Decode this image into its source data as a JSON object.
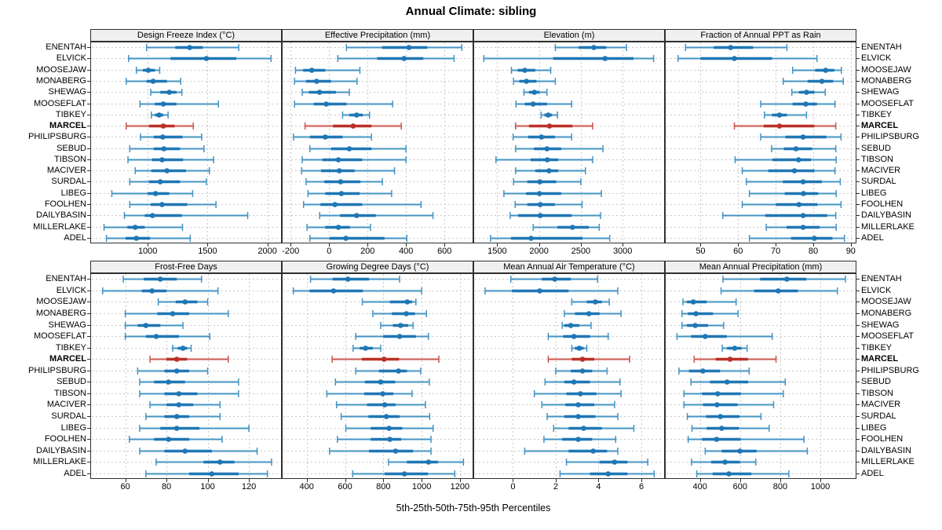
{
  "title": "Annual Climate: sibling",
  "caption": "5th-25th-50th-75th-95th Percentiles",
  "highlight_station": "MARCEL",
  "colors": {
    "series_main": "#1f77b4",
    "series_whisker": "#4393c3",
    "highlight_main": "#bb3026",
    "highlight_whisker": "#c9554c",
    "gridline": "#c9c9c9",
    "panel_border": "#2f2f2f",
    "header_bg": "#f0f0f0"
  },
  "stations": [
    "ENENTAH",
    "ELVICK",
    "MOOSEJAW",
    "MONABERG",
    "SHEWAG",
    "MOOSEFLAT",
    "TIBKEY",
    "MARCEL",
    "PHILIPSBURG",
    "SEBUD",
    "TIBSON",
    "MACIVER",
    "SURDAL",
    "LIBEG",
    "FOOLHEN",
    "DAILYBASIN",
    "MILLERLAKE",
    "ADEL"
  ],
  "percentile_labels": [
    "5th",
    "25th",
    "50th",
    "75th",
    "95th"
  ],
  "chart_data": [
    {
      "type": "scatter",
      "title": "Design Freeze Index (°C)",
      "grid_row": 0,
      "grid_col": 0,
      "xlim": [
        520,
        2120
      ],
      "x_ticks": [
        1000,
        1500,
        2000
      ],
      "values": [
        [
          990,
          1230,
          1350,
          1460,
          1760
        ],
        [
          840,
          1190,
          1490,
          1740,
          2030
        ],
        [
          905,
          960,
          1005,
          1060,
          1100
        ],
        [
          820,
          990,
          1045,
          1160,
          1275
        ],
        [
          1025,
          1105,
          1180,
          1240,
          1285
        ],
        [
          935,
          1060,
          1130,
          1240,
          1590
        ],
        [
          1030,
          1060,
          1095,
          1130,
          1170
        ],
        [
          820,
          1010,
          1130,
          1225,
          1380
        ],
        [
          940,
          1050,
          1125,
          1290,
          1450
        ],
        [
          850,
          1050,
          1135,
          1270,
          1470
        ],
        [
          835,
          1035,
          1120,
          1295,
          1550
        ],
        [
          895,
          1030,
          1160,
          1320,
          1515
        ],
        [
          850,
          1010,
          1105,
          1270,
          1490
        ],
        [
          700,
          1000,
          1065,
          1180,
          1375
        ],
        [
          850,
          1025,
          1120,
          1330,
          1570
        ],
        [
          805,
          975,
          1040,
          1285,
          1835
        ],
        [
          635,
          830,
          895,
          975,
          1290
        ],
        [
          655,
          815,
          905,
          1020,
          1355
        ]
      ]
    },
    {
      "type": "scatter",
      "title": "Effective Precipitation (mm)",
      "grid_row": 0,
      "grid_col": 1,
      "xlim": [
        -246,
        750
      ],
      "x_ticks": [
        -200,
        0,
        200,
        400,
        600
      ],
      "values": [
        [
          90,
          275,
          415,
          510,
          690
        ],
        [
          45,
          250,
          390,
          490,
          650
        ],
        [
          -175,
          -135,
          -90,
          -20,
          160
        ],
        [
          -180,
          -120,
          -65,
          10,
          145
        ],
        [
          -140,
          -105,
          -50,
          35,
          105
        ],
        [
          -180,
          -80,
          -15,
          90,
          330
        ],
        [
          70,
          105,
          143,
          175,
          210
        ],
        [
          -125,
          20,
          125,
          220,
          375
        ],
        [
          -185,
          -100,
          -20,
          70,
          220
        ],
        [
          -100,
          10,
          105,
          220,
          400
        ],
        [
          -140,
          -35,
          48,
          172,
          400
        ],
        [
          -143,
          -42,
          53,
          132,
          340
        ],
        [
          -120,
          -25,
          60,
          163,
          277
        ],
        [
          -110,
          -20,
          64,
          159,
          325
        ],
        [
          -133,
          -45,
          30,
          172,
          478
        ],
        [
          -49,
          57,
          143,
          243,
          540
        ],
        [
          -115,
          -20,
          48,
          108,
          215
        ],
        [
          -100,
          3,
          87,
          288,
          404
        ]
      ]
    },
    {
      "type": "scatter",
      "title": "Elevation (m)",
      "grid_row": 0,
      "grid_col": 2,
      "xlim": [
        1215,
        3505
      ],
      "x_ticks": [
        1500,
        2000,
        2500,
        3000
      ],
      "values": [
        [
          2195,
          2475,
          2655,
          2805,
          3045
        ],
        [
          1340,
          2170,
          2790,
          3130,
          3370
        ],
        [
          1670,
          1745,
          1830,
          1955,
          2140
        ],
        [
          1695,
          1765,
          1850,
          1970,
          2195
        ],
        [
          1820,
          1880,
          1945,
          2005,
          2095
        ],
        [
          1725,
          1830,
          1930,
          2095,
          2390
        ],
        [
          2025,
          2065,
          2110,
          2155,
          2220
        ],
        [
          1720,
          1880,
          2125,
          2400,
          2640
        ],
        [
          1690,
          1870,
          2030,
          2190,
          2390
        ],
        [
          1720,
          1940,
          2095,
          2265,
          2765
        ],
        [
          1485,
          1900,
          2100,
          2230,
          2640
        ],
        [
          1720,
          1955,
          2120,
          2230,
          2555
        ],
        [
          1695,
          1860,
          2010,
          2205,
          2500
        ],
        [
          1580,
          1845,
          2005,
          2265,
          2745
        ],
        [
          1715,
          1860,
          2015,
          2190,
          2515
        ],
        [
          1655,
          1750,
          2015,
          2390,
          2735
        ],
        [
          1930,
          2220,
          2400,
          2595,
          2720
        ],
        [
          1420,
          1665,
          1905,
          2520,
          2845
        ]
      ]
    },
    {
      "type": "scatter",
      "title": "Fraction of Annual PPT as Rain",
      "grid_row": 0,
      "grid_col": 3,
      "xlim": [
        40.5,
        91.5
      ],
      "x_ticks": [
        50,
        60,
        70,
        80,
        90
      ],
      "values": [
        [
          46,
          53.5,
          58,
          64,
          73
        ],
        [
          44,
          50,
          59,
          69,
          81
        ],
        [
          74.5,
          80.5,
          83.3,
          85.6,
          87.5
        ],
        [
          72,
          78.5,
          82.3,
          85.3,
          88
        ],
        [
          74.3,
          76.2,
          78.2,
          80.3,
          83.2
        ],
        [
          66,
          74.5,
          78,
          81,
          85.8
        ],
        [
          67,
          69,
          71,
          73,
          78.2
        ],
        [
          59,
          66.8,
          71,
          80.3,
          86
        ],
        [
          66,
          72.6,
          77.3,
          83.5,
          87.4
        ],
        [
          68.9,
          72.2,
          75.4,
          79.7,
          86
        ],
        [
          59.2,
          69.1,
          76.1,
          79.4,
          86.1
        ],
        [
          61.1,
          68,
          75,
          80.3,
          85.8
        ],
        [
          62.2,
          71.9,
          77.3,
          82.3,
          87.2
        ],
        [
          63,
          72.4,
          77.4,
          81.3,
          86.1
        ],
        [
          61.1,
          70,
          76.2,
          81.1,
          87.4
        ],
        [
          55.9,
          67.2,
          77.3,
          83.7,
          86
        ],
        [
          67.5,
          72.9,
          77.3,
          81.7,
          86.1
        ],
        [
          63,
          74.1,
          80.3,
          85.1,
          88.3
        ]
      ]
    },
    {
      "type": "scatter",
      "title": "Frost-Free Days",
      "grid_row": 1,
      "grid_col": 0,
      "xlim": [
        43,
        136
      ],
      "x_ticks": [
        60,
        80,
        100,
        120
      ],
      "values": [
        [
          59,
          69,
          77,
          85,
          97
        ],
        [
          49,
          68,
          73,
          80,
          105
        ],
        [
          76,
          84.5,
          89,
          95,
          100
        ],
        [
          60,
          75.5,
          83,
          91,
          110
        ],
        [
          60,
          66,
          70,
          77,
          88
        ],
        [
          60,
          70,
          75,
          86,
          101
        ],
        [
          83,
          85.5,
          88,
          90,
          92
        ],
        [
          72,
          80,
          85,
          90,
          110
        ],
        [
          66,
          79,
          85,
          91,
          100
        ],
        [
          67,
          74,
          81,
          89,
          115
        ],
        [
          67,
          79,
          86,
          95,
          115
        ],
        [
          72,
          80,
          86,
          93,
          106
        ],
        [
          70,
          79,
          85,
          91,
          106
        ],
        [
          67,
          77,
          85,
          96,
          120
        ],
        [
          62,
          74,
          81,
          91,
          107
        ],
        [
          67,
          79,
          89,
          102,
          124
        ],
        [
          75,
          98,
          106,
          113,
          131
        ],
        [
          70,
          91,
          102,
          115,
          129
        ]
      ]
    },
    {
      "type": "scatter",
      "title": "Growing Degree Days (°C)",
      "grid_row": 1,
      "grid_col": 1,
      "xlim": [
        270,
        1270
      ],
      "x_ticks": [
        400,
        600,
        800,
        1000,
        1200
      ],
      "values": [
        [
          420,
          535,
          615,
          725,
          885
        ],
        [
          330,
          415,
          540,
          693,
          1000
        ],
        [
          690,
          835,
          925,
          950,
          970
        ],
        [
          745,
          845,
          920,
          965,
          1025
        ],
        [
          786,
          850,
          890,
          930,
          955
        ],
        [
          656,
          800,
          885,
          970,
          1035
        ],
        [
          642,
          677,
          707,
          745,
          786
        ],
        [
          533,
          688,
          804,
          882,
          1090
        ],
        [
          656,
          777,
          879,
          923,
          995
        ],
        [
          550,
          704,
          786,
          862,
          1040
        ],
        [
          505,
          700,
          797,
          852,
          950
        ],
        [
          556,
          715,
          807,
          864,
          1020
        ],
        [
          580,
          722,
          816,
          885,
          1042
        ],
        [
          604,
          734,
          830,
          899,
          1060
        ],
        [
          560,
          734,
          834,
          893,
          1049
        ],
        [
          519,
          725,
          864,
          955,
          1049
        ],
        [
          827,
          923,
          1036,
          1085,
          1218
        ],
        [
          640,
          807,
          910,
          1033,
          1173
        ]
      ]
    },
    {
      "type": "scatter",
      "title": "Mean Annual Air Temperature (°C)",
      "grid_row": 1,
      "grid_col": 2,
      "xlim": [
        -1.85,
        7.1
      ],
      "x_ticks": [
        0,
        2,
        4,
        6
      ],
      "values": [
        [
          -0.1,
          1.35,
          1.95,
          2.7,
          3.95
        ],
        [
          -1.3,
          -0.05,
          1.25,
          2.6,
          4.9
        ],
        [
          2.75,
          3.45,
          3.85,
          4.15,
          4.5
        ],
        [
          2.4,
          2.9,
          3.55,
          4.05,
          5.05
        ],
        [
          2.3,
          2.4,
          2.7,
          3.1,
          3.65
        ],
        [
          1.65,
          2.35,
          2.85,
          3.6,
          4.45
        ],
        [
          2.75,
          2.9,
          3.1,
          3.3,
          3.45
        ],
        [
          1.65,
          2.75,
          3.25,
          3.8,
          5.45
        ],
        [
          2.0,
          2.7,
          3.25,
          3.7,
          4.4
        ],
        [
          1.5,
          2.4,
          2.85,
          3.6,
          5.0
        ],
        [
          1.0,
          2.5,
          3.15,
          3.9,
          5.05
        ],
        [
          1.35,
          2.45,
          3.05,
          3.8,
          4.75
        ],
        [
          1.6,
          2.4,
          3.05,
          3.85,
          4.9
        ],
        [
          1.9,
          2.6,
          3.3,
          4.15,
          5.65
        ],
        [
          1.45,
          2.3,
          3.05,
          3.7,
          4.8
        ],
        [
          0.55,
          2.6,
          3.75,
          4.4,
          4.9
        ],
        [
          2.5,
          4.05,
          4.75,
          5.35,
          6.3
        ],
        [
          2.2,
          3.6,
          4.45,
          5.35,
          6.6
        ]
      ]
    },
    {
      "type": "scatter",
      "title": "Mean Annual Precipitation (mm)",
      "grid_row": 1,
      "grid_col": 3,
      "xlim": [
        225,
        1180
      ],
      "x_ticks": [
        400,
        600,
        800,
        1000
      ],
      "values": [
        [
          515,
          700,
          833,
          930,
          1125
        ],
        [
          505,
          670,
          790,
          888,
          1085
        ],
        [
          315,
          335,
          367,
          433,
          580
        ],
        [
          310,
          340,
          380,
          465,
          590
        ],
        [
          310,
          335,
          376,
          440,
          518
        ],
        [
          285,
          355,
          426,
          533,
          760
        ],
        [
          511,
          535,
          573,
          607,
          635
        ],
        [
          371,
          478,
          550,
          639,
          779
        ],
        [
          295,
          345,
          415,
          500,
          645
        ],
        [
          355,
          450,
          535,
          640,
          825
        ],
        [
          320,
          410,
          488,
          603,
          815
        ],
        [
          320,
          415,
          485,
          587,
          767
        ],
        [
          337,
          430,
          502,
          597,
          704
        ],
        [
          360,
          433,
          508,
          594,
          745
        ],
        [
          341,
          410,
          483,
          603,
          918
        ],
        [
          426,
          508,
          599,
          682,
          935
        ],
        [
          358,
          456,
          525,
          599,
          678
        ],
        [
          384,
          463,
          544,
          656,
          843
        ]
      ]
    }
  ]
}
